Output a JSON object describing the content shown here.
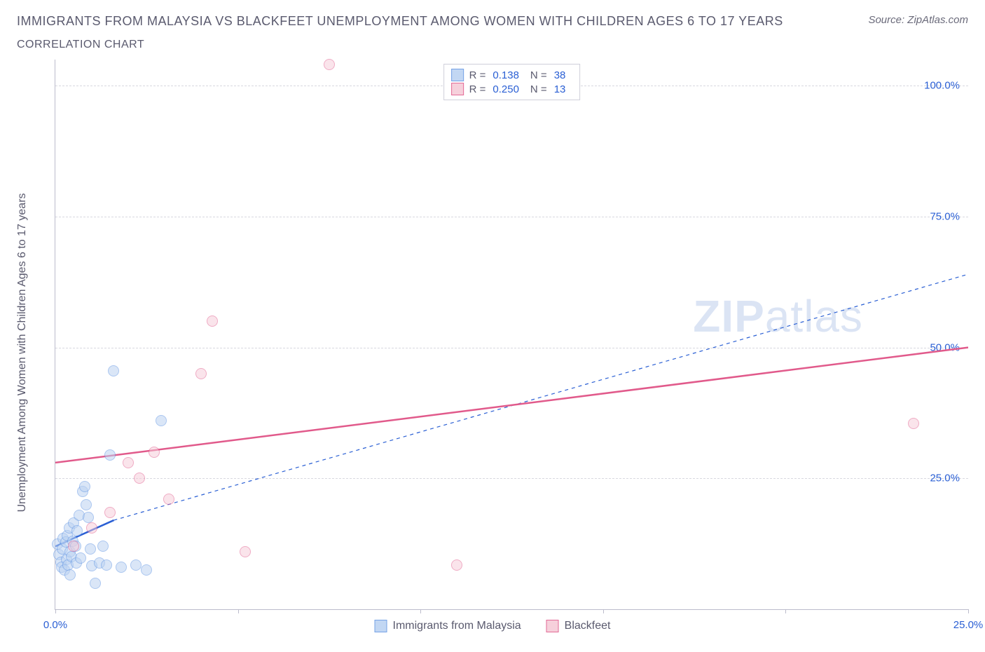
{
  "header": {
    "title": "IMMIGRANTS FROM MALAYSIA VS BLACKFEET UNEMPLOYMENT AMONG WOMEN WITH CHILDREN AGES 6 TO 17 YEARS",
    "subtitle": "CORRELATION CHART",
    "source": "Source: ZipAtlas.com"
  },
  "chart": {
    "type": "scatter",
    "ylabel": "Unemployment Among Women with Children Ages 6 to 17 years",
    "xlim": [
      0,
      25
    ],
    "ylim": [
      0,
      105
    ],
    "xtick_positions": [
      0,
      5,
      10,
      15,
      20,
      25
    ],
    "xtick_labels": [
      "0.0%",
      "",
      "",
      "",
      "",
      "25.0%"
    ],
    "ytick_positions": [
      25,
      50,
      75,
      100
    ],
    "ytick_labels": [
      "25.0%",
      "50.0%",
      "75.0%",
      "100.0%"
    ],
    "grid_color": "#d8d8e0",
    "axis_color": "#bcbccc",
    "background_color": "#ffffff",
    "watermark": "ZIPatlas",
    "series": [
      {
        "name": "Immigrants from Malaysia",
        "color_fill": "#bcd3f2",
        "color_stroke": "#6799e4",
        "marker_radius": 8,
        "fill_opacity": 0.55,
        "R": "0.138",
        "N": "38",
        "trend": {
          "x1": 0,
          "y1": 12,
          "x2": 1.6,
          "y2": 17,
          "color": "#2a5fd4",
          "width": 2.5,
          "dash": "none",
          "ext_x2": 25,
          "ext_y2": 64,
          "ext_dash": "5,5",
          "ext_width": 1.2
        },
        "points": [
          [
            0.05,
            12.5
          ],
          [
            0.1,
            10.5
          ],
          [
            0.15,
            9.0
          ],
          [
            0.18,
            8.0
          ],
          [
            0.2,
            11.5
          ],
          [
            0.22,
            13.5
          ],
          [
            0.25,
            7.5
          ],
          [
            0.28,
            12.8
          ],
          [
            0.3,
            9.5
          ],
          [
            0.32,
            14.0
          ],
          [
            0.35,
            8.5
          ],
          [
            0.38,
            15.5
          ],
          [
            0.4,
            11.0
          ],
          [
            0.45,
            10.0
          ],
          [
            0.48,
            13.0
          ],
          [
            0.5,
            16.5
          ],
          [
            0.55,
            12.0
          ],
          [
            0.58,
            8.8
          ],
          [
            0.6,
            15.0
          ],
          [
            0.65,
            18.0
          ],
          [
            0.7,
            9.8
          ],
          [
            0.75,
            22.5
          ],
          [
            0.8,
            23.5
          ],
          [
            0.85,
            20.0
          ],
          [
            0.9,
            17.5
          ],
          [
            0.95,
            11.5
          ],
          [
            1.0,
            8.3
          ],
          [
            1.1,
            5.0
          ],
          [
            1.2,
            8.8
          ],
          [
            1.3,
            12.0
          ],
          [
            1.4,
            8.5
          ],
          [
            1.5,
            29.5
          ],
          [
            1.6,
            45.5
          ],
          [
            1.8,
            8.0
          ],
          [
            2.2,
            8.5
          ],
          [
            2.5,
            7.5
          ],
          [
            2.9,
            36.0
          ],
          [
            0.4,
            6.5
          ]
        ]
      },
      {
        "name": "Blackfeet",
        "color_fill": "#f6cbd8",
        "color_stroke": "#e15a8b",
        "marker_radius": 8,
        "fill_opacity": 0.5,
        "R": "0.250",
        "N": "13",
        "trend": {
          "x1": 0,
          "y1": 28,
          "x2": 25,
          "y2": 50,
          "color": "#e15a8b",
          "width": 2.5,
          "dash": "none"
        },
        "points": [
          [
            0.5,
            12.0
          ],
          [
            1.5,
            18.5
          ],
          [
            2.3,
            25.0
          ],
          [
            2.7,
            30.0
          ],
          [
            3.1,
            21.0
          ],
          [
            4.0,
            45.0
          ],
          [
            4.3,
            55.0
          ],
          [
            5.2,
            11.0
          ],
          [
            7.5,
            104.0
          ],
          [
            11.0,
            8.5
          ],
          [
            23.5,
            35.5
          ],
          [
            1.0,
            15.5
          ],
          [
            2.0,
            28.0
          ]
        ]
      }
    ],
    "legend_top": {
      "swatch_size": 18
    },
    "legend_bottom": {
      "items": [
        "Immigrants from Malaysia",
        "Blackfeet"
      ]
    }
  }
}
